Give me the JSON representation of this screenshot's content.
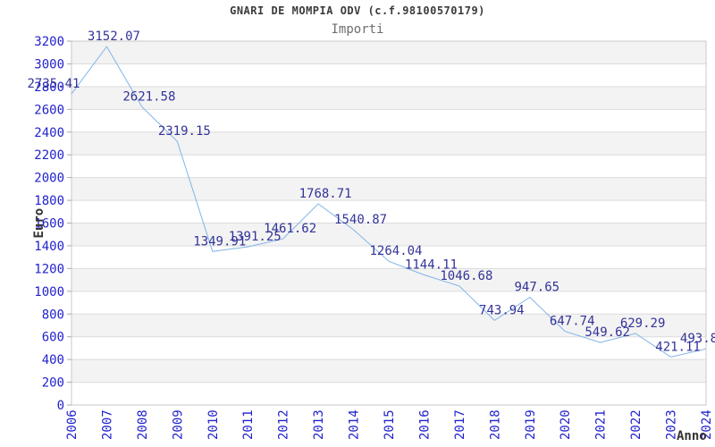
{
  "chart_data": {
    "type": "line",
    "title": "GNARI DE MOMPIA ODV (c.f.98100570179)",
    "subtitle": "Importi",
    "xlabel": "Anno",
    "ylabel": "Euro",
    "x": [
      "2006",
      "2007",
      "2008",
      "2009",
      "2010",
      "2011",
      "2012",
      "2013",
      "2014",
      "2015",
      "2016",
      "2017",
      "2018",
      "2019",
      "2020",
      "2021",
      "2022",
      "2023",
      "2024"
    ],
    "series": [
      {
        "name": "Importi",
        "values": [
          2735.41,
          3152.07,
          2621.58,
          2319.15,
          1349.91,
          1391.25,
          1461.62,
          1768.71,
          1540.87,
          1264.04,
          1144.11,
          1046.68,
          743.94,
          947.65,
          647.74,
          549.62,
          629.29,
          421.11,
          493.8
        ]
      }
    ],
    "point_labels": [
      "2735.41",
      "3152.07",
      "2621.58",
      "2319.15",
      "1349.91",
      "1391.25",
      "1461.62",
      "1768.71",
      "1540.87",
      "1264.04",
      "1144.11",
      "1046.68",
      "743.94",
      "947.65",
      "647.74",
      "549.62",
      "629.29",
      "421.11",
      "493.8"
    ],
    "ylim": [
      0,
      3200
    ],
    "ytick_step": 200,
    "grid": true,
    "legend_position": "none",
    "colors": {
      "line": "#7fb3e8",
      "tick_label": "#2222cc",
      "point_label": "#333399",
      "band_gray": "#f3f3f3",
      "band_white": "#ffffff",
      "gridline": "#dcdcdc",
      "plot_border": "#c8c8c8",
      "axis_title": "#333333",
      "title": "#3b3b3b",
      "subtitle": "#6e6e6e"
    }
  }
}
